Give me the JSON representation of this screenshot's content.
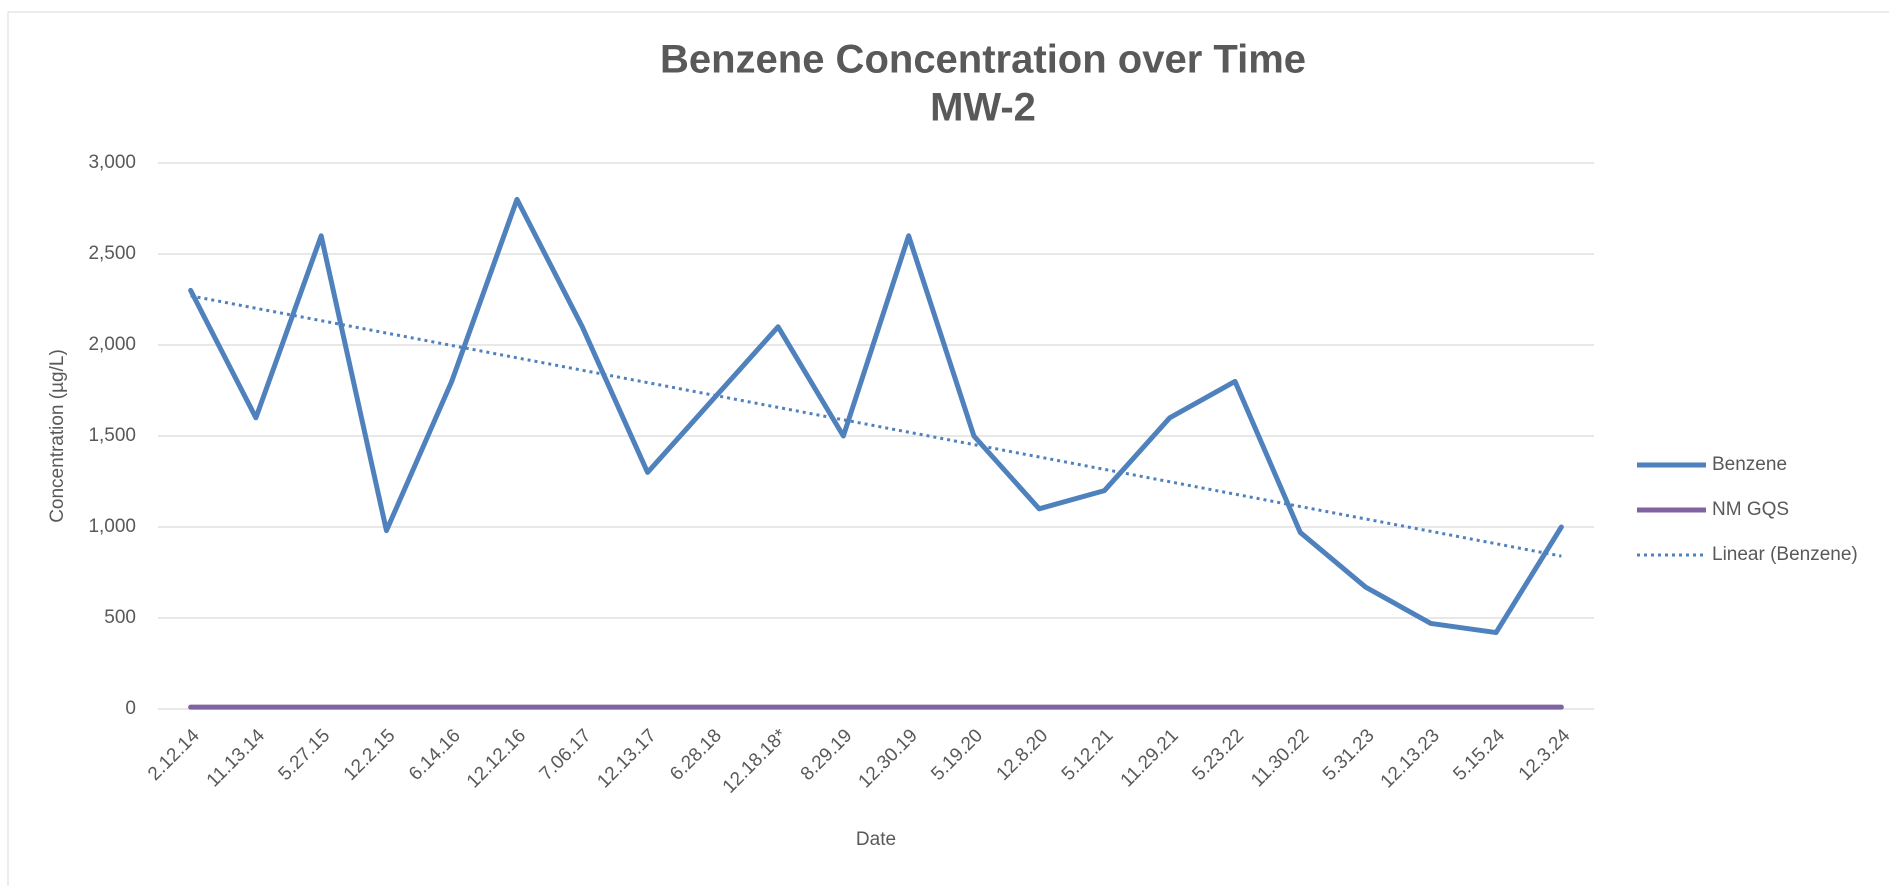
{
  "chart_data": {
    "type": "line",
    "title": "Benzene Concentration over Time",
    "subtitle": "MW-2",
    "x_label": "Date",
    "y_label": "Concentration (µg/L)",
    "categories": [
      "2.12.14",
      "11.13.14",
      "5.27.15",
      "12.2.15",
      "6.14.16",
      "12.12.16",
      "7.06.17",
      "12.13.17",
      "6.28.18",
      "12.18.18*",
      "8.29.19",
      "12.30.19",
      "5.19.20",
      "12.8.20",
      "5.12.21",
      "11.29.21",
      "5.23.22",
      "11.30.22",
      "5.31.23",
      "12.13.23",
      "5.15.24",
      "12.3.24"
    ],
    "series": [
      {
        "name": "Benzene",
        "color": "#4f81bd",
        "values": [
          2300,
          1600,
          2600,
          980,
          1800,
          2800,
          2100,
          1300,
          1700,
          2100,
          1500,
          2600,
          1500,
          1100,
          1200,
          1600,
          1800,
          970,
          670,
          470,
          420,
          1000
        ]
      },
      {
        "name": "NM GQS",
        "color": "#8064a2",
        "values": [
          10,
          10,
          10,
          10,
          10,
          10,
          10,
          10,
          10,
          10,
          10,
          10,
          10,
          10,
          10,
          10,
          10,
          10,
          10,
          10,
          10,
          10
        ]
      }
    ],
    "trendline": {
      "name": "Linear (Benzene)",
      "color": "#4f81bd",
      "start": 2270,
      "end": 840
    },
    "ylim": [
      0,
      3000
    ],
    "yticks": [
      0,
      {
        "value": 500,
        "label": "500"
      },
      {
        "value": 1000,
        "label": "1,000"
      },
      {
        "value": 1500,
        "label": "1,500"
      },
      {
        "value": 2000,
        "label": "2,000"
      },
      {
        "value": 2500,
        "label": "2,500"
      },
      {
        "value": 3000,
        "label": "3,000"
      }
    ],
    "grid": true,
    "legend": "right"
  }
}
